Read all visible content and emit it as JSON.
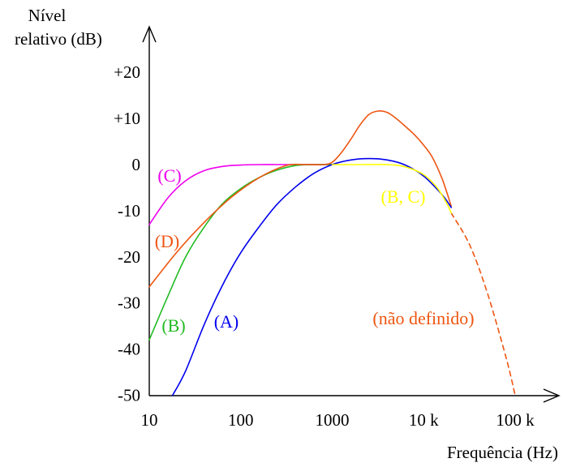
{
  "chart_data": {
    "type": "line",
    "xlabel": "Frequência (Hz)",
    "ylabel_line1": "Nível",
    "ylabel_line2": "relativo (dB)",
    "x_scale": "log",
    "xlim": [
      10,
      100000
    ],
    "ylim": [
      -50,
      20
    ],
    "x_ticks": [
      {
        "value": 10,
        "label": "10"
      },
      {
        "value": 100,
        "label": "100"
      },
      {
        "value": 1000,
        "label": "1000"
      },
      {
        "value": 10000,
        "label": "10 k"
      },
      {
        "value": 100000,
        "label": "100 k"
      }
    ],
    "y_ticks": [
      {
        "value": 20,
        "label": "+20"
      },
      {
        "value": 10,
        "label": "+10"
      },
      {
        "value": 0,
        "label": "0"
      },
      {
        "value": -10,
        "label": "-10"
      },
      {
        "value": -20,
        "label": "-20"
      },
      {
        "value": -30,
        "label": "-30"
      },
      {
        "value": -40,
        "label": "-40"
      },
      {
        "value": -50,
        "label": "-50"
      }
    ],
    "grid": false,
    "series": [
      {
        "name": "(A)",
        "color": "#0000ee",
        "x": [
          18,
          25,
          40,
          63,
          100,
          160,
          250,
          400,
          630,
          1000,
          1600,
          2500,
          4000,
          6300,
          10000,
          16000,
          20000
        ],
        "y": [
          -50,
          -44.7,
          -34.6,
          -26.2,
          -19.1,
          -13.4,
          -8.6,
          -4.8,
          -1.9,
          0,
          1.0,
          1.3,
          1.0,
          -0.1,
          -2.5,
          -6.6,
          -9.3
        ]
      },
      {
        "name": "(B)",
        "color": "#22bb22",
        "x": [
          10,
          16,
          25,
          40,
          63,
          100,
          160,
          250,
          400,
          630,
          1000
        ],
        "y": [
          -38,
          -28.5,
          -20,
          -13.5,
          -8.5,
          -5.2,
          -2.8,
          -1.2,
          -0.2,
          0,
          0
        ]
      },
      {
        "name": "(C)",
        "color": "#ee00ee",
        "x": [
          10,
          16,
          25,
          40,
          63,
          100,
          160,
          250,
          400,
          1000
        ],
        "y": [
          -13,
          -7.2,
          -3.5,
          -1.3,
          -0.4,
          -0.1,
          0,
          0,
          0,
          0
        ]
      },
      {
        "name": "(D)",
        "color": "#ee5511",
        "x": [
          10,
          20,
          40,
          80,
          160,
          315,
          500,
          800,
          1000,
          1250,
          1600,
          2000,
          2500,
          3150,
          4000,
          5000,
          6300,
          8000,
          10000,
          12500,
          16000,
          20000
        ],
        "y": [
          -26.5,
          -19,
          -12.5,
          -7,
          -2.8,
          -0.2,
          0,
          0,
          0.5,
          2.5,
          5.5,
          8.5,
          10.8,
          11.6,
          11.3,
          10,
          8.3,
          6.4,
          4.2,
          1.5,
          -3.2,
          -9
        ],
        "note_label": "(não definido)",
        "dashed_x": [
          20000,
          32000,
          50000,
          80000,
          100000
        ],
        "dashed_y": [
          -10.5,
          -17.5,
          -28,
          -42,
          -50
        ]
      },
      {
        "name": "(B, C)",
        "color": "#ffff00",
        "x": [
          1000,
          2000,
          4000,
          6300,
          10000,
          14000,
          18000,
          20000
        ],
        "y": [
          0,
          0,
          0,
          -0.5,
          -2.2,
          -5,
          -8.5,
          -10.5
        ]
      }
    ]
  }
}
